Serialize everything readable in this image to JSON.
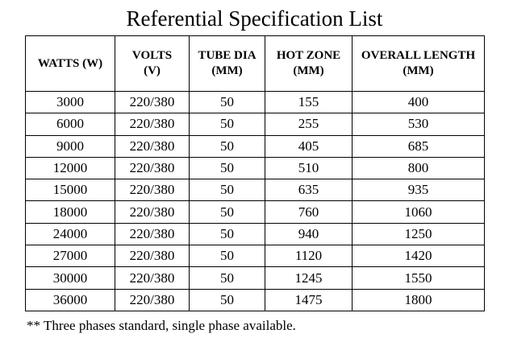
{
  "title": "Referential Specification List",
  "table": {
    "columns": [
      {
        "line1": "WATTS (W)",
        "line2": ""
      },
      {
        "line1": "VOLTS",
        "line2": "(V)"
      },
      {
        "line1": "TUBE DIA",
        "line2": "(MM)"
      },
      {
        "line1": "HOT ZONE",
        "line2": "(MM)"
      },
      {
        "line1": "OVERALL LENGTH",
        "line2": "(MM)"
      }
    ],
    "rows": [
      [
        "3000",
        "220/380",
        "50",
        "155",
        "400"
      ],
      [
        "6000",
        "220/380",
        "50",
        "255",
        "530"
      ],
      [
        "9000",
        "220/380",
        "50",
        "405",
        "685"
      ],
      [
        "12000",
        "220/380",
        "50",
        "510",
        "800"
      ],
      [
        "15000",
        "220/380",
        "50",
        "635",
        "935"
      ],
      [
        "18000",
        "220/380",
        "50",
        "760",
        "1060"
      ],
      [
        "24000",
        "220/380",
        "50",
        "940",
        "1250"
      ],
      [
        "27000",
        "220/380",
        "50",
        "1120",
        "1420"
      ],
      [
        "30000",
        "220/380",
        "50",
        "1245",
        "1550"
      ],
      [
        "36000",
        "220/380",
        "50",
        "1475",
        "1800"
      ]
    ]
  },
  "footnote": "** Three phases standard, single phase available."
}
